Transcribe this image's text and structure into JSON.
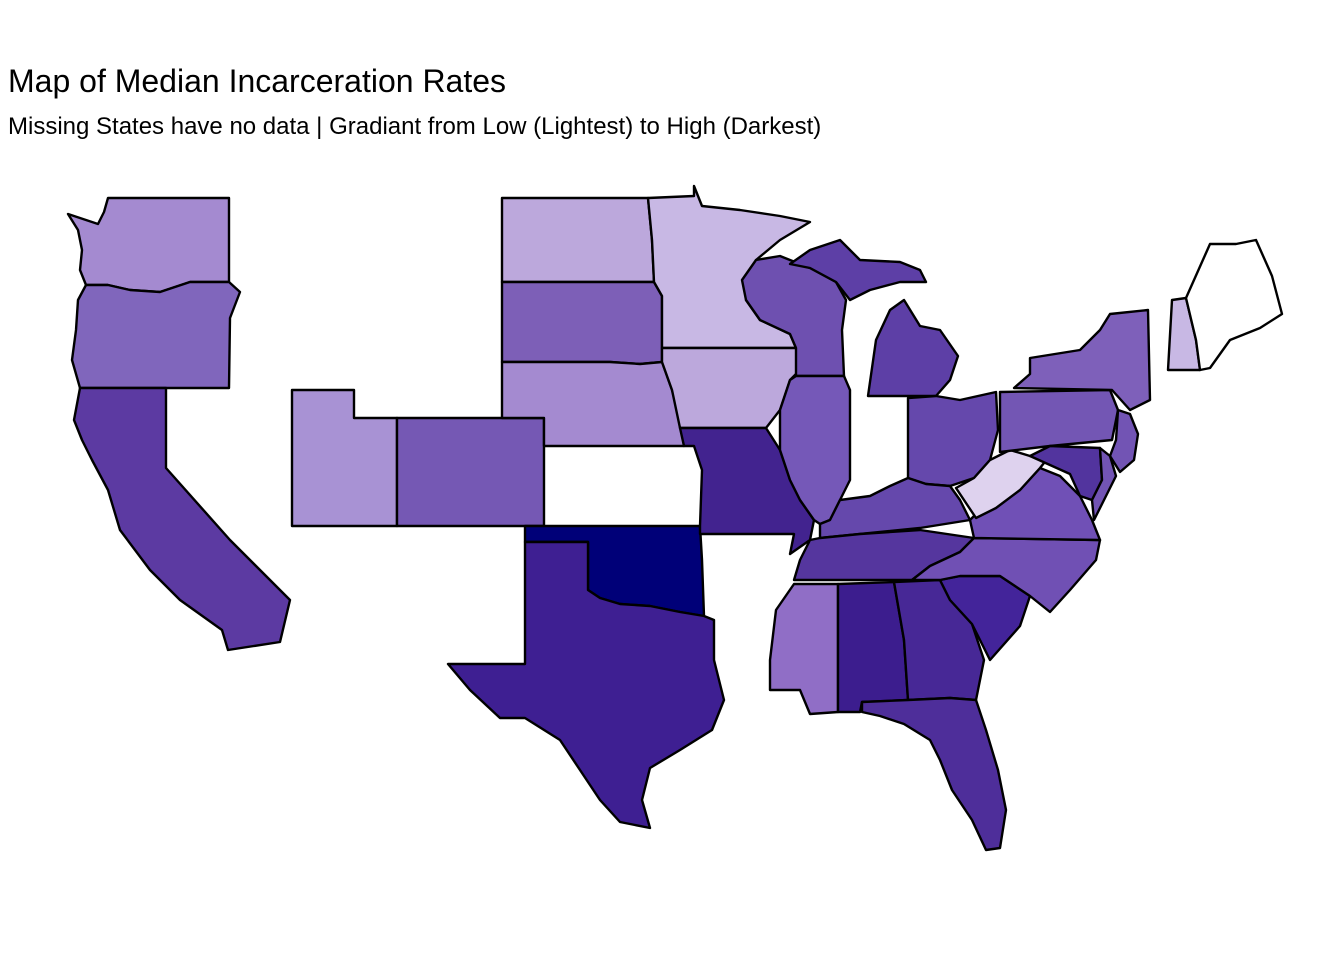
{
  "title": "Map of Median Incarceration Rates",
  "subtitle": "Missing States have no data | Gradiant from Low (Lightest) to High (Darkest)",
  "map": {
    "missing_fill": "#ffffff",
    "states": [
      {
        "state": "washington",
        "fill": "#a48ad0",
        "level": 0.36
      },
      {
        "state": "oregon",
        "fill": "#8066bc",
        "level": 0.55
      },
      {
        "state": "california",
        "fill": "#5c3aa2",
        "level": 0.75
      },
      {
        "state": "utah",
        "fill": "#a892d4",
        "level": 0.35
      },
      {
        "state": "colorado",
        "fill": "#7558b4",
        "level": 0.6
      },
      {
        "state": "north-dakota",
        "fill": "#bca8dc",
        "level": 0.25
      },
      {
        "state": "south-dakota",
        "fill": "#7d5fb7",
        "level": 0.57
      },
      {
        "state": "nebraska",
        "fill": "#a48ad0",
        "level": 0.36
      },
      {
        "state": "oklahoma",
        "fill": "#000078",
        "level": 1.0
      },
      {
        "state": "texas",
        "fill": "#3e1f92",
        "level": 0.88
      },
      {
        "state": "minnesota",
        "fill": "#c8b8e4",
        "level": 0.18
      },
      {
        "state": "iowa",
        "fill": "#bca8dc",
        "level": 0.25
      },
      {
        "state": "missouri",
        "fill": "#42238f",
        "level": 0.86
      },
      {
        "state": "wisconsin",
        "fill": "#6e50b0",
        "level": 0.63
      },
      {
        "state": "illinois",
        "fill": "#7558b8",
        "level": 0.6
      },
      {
        "state": "michigan",
        "fill": "#5d3fa6",
        "level": 0.74
      },
      {
        "state": "ohio",
        "fill": "#6548ac",
        "level": 0.69
      },
      {
        "state": "kentucky",
        "fill": "#6548ac",
        "level": 0.69
      },
      {
        "state": "tennessee",
        "fill": "#55369e",
        "level": 0.78
      },
      {
        "state": "mississippi",
        "fill": "#906ec6",
        "level": 0.45
      },
      {
        "state": "alabama",
        "fill": "#3c1d8e",
        "level": 0.89
      },
      {
        "state": "georgia",
        "fill": "#472896",
        "level": 0.84
      },
      {
        "state": "florida",
        "fill": "#4e2e9a",
        "level": 0.81
      },
      {
        "state": "south-carolina",
        "fill": "#43249a",
        "level": 0.85
      },
      {
        "state": "north-carolina",
        "fill": "#7050b4",
        "level": 0.62
      },
      {
        "state": "virginia",
        "fill": "#7050b6",
        "level": 0.62
      },
      {
        "state": "west-virginia",
        "fill": "#ded2ee",
        "level": 0.08
      },
      {
        "state": "pennsylvania",
        "fill": "#7356b4",
        "level": 0.6
      },
      {
        "state": "new-york",
        "fill": "#7e60ba",
        "level": 0.56
      },
      {
        "state": "new-jersey",
        "fill": "#7254b4",
        "level": 0.61
      },
      {
        "state": "maryland",
        "fill": "#52349e",
        "level": 0.79
      },
      {
        "state": "delaware",
        "fill": "#7254b4",
        "level": 0.61
      },
      {
        "state": "new-hampshire",
        "fill": "#c8b8e4",
        "level": 0.18
      },
      {
        "state": "maine",
        "fill": "#ffffff",
        "level": null
      }
    ]
  }
}
